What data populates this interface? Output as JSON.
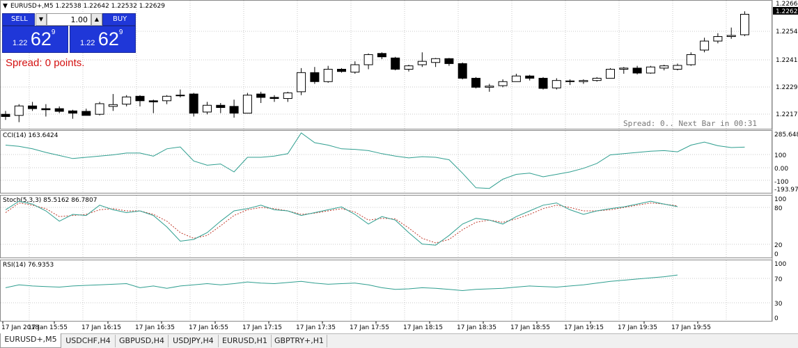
{
  "window": {
    "symbol_header": "EURUSD+,M5  1.22538 1.22642 1.22532 1.22629"
  },
  "one_click": {
    "sell_label": "SELL",
    "buy_label": "BUY",
    "volume": "1.00",
    "sell_small": "1.22",
    "sell_big": "62",
    "sell_sup": "9",
    "buy_small": "1.22",
    "buy_big": "62",
    "buy_sup": "9",
    "spread_text": "Spread: 0 points."
  },
  "price_axis": {
    "labels": [
      "1.22660",
      "1.22540",
      "1.22415",
      "1.22295",
      "1.22175"
    ],
    "current": "1.22629"
  },
  "status_text": "Spread: 0.. Next Bar in 00:31",
  "indicators": {
    "cci": {
      "title": "CCI(14) 163.6424",
      "labels": [
        "285.6483",
        "100",
        "0.00",
        "-100",
        "-193.973"
      ]
    },
    "stoch": {
      "title": "Stoch(5,3,3) 85.5162 86.7807",
      "labels": [
        "100",
        "80",
        "20",
        "0"
      ]
    },
    "rsi": {
      "title": "RSI(14) 76.9353",
      "labels": [
        "100",
        "70",
        "30",
        "0"
      ]
    }
  },
  "time_axis": [
    "17 Jan 2018",
    "17 Jan 15:55",
    "17 Jan 16:15",
    "17 Jan 16:35",
    "17 Jan 16:55",
    "17 Jan 17:15",
    "17 Jan 17:35",
    "17 Jan 17:55",
    "17 Jan 18:15",
    "17 Jan 18:35",
    "17 Jan 18:55",
    "17 Jan 19:15",
    "17 Jan 19:35",
    "17 Jan 19:55"
  ],
  "tabs": [
    "EURUSD+,M5",
    "USDCHF,H4",
    "GBPUSD,H4",
    "USDJPY,H4",
    "EURUSD,H1",
    "GBPTRY+,H1"
  ],
  "colors": {
    "bull": "#ffffff",
    "bear": "#000000",
    "line": "#2e9e8f",
    "signal": "#c0392b",
    "panel": "#1f37d8",
    "spread": "#d41010"
  },
  "chart_data": [
    {
      "type": "candlestick",
      "symbol": "EURUSD+",
      "timeframe": "M5",
      "price_range": [
        1.2213,
        1.2268
      ],
      "candles": [
        {
          "o": 1.22185,
          "h": 1.222,
          "l": 1.2216,
          "c": 1.22175
        },
        {
          "o": 1.2218,
          "h": 1.2223,
          "l": 1.2215,
          "c": 1.22222
        },
        {
          "o": 1.22222,
          "h": 1.2224,
          "l": 1.222,
          "c": 1.2221
        },
        {
          "o": 1.2221,
          "h": 1.2223,
          "l": 1.22175,
          "c": 1.22205
        },
        {
          "o": 1.2221,
          "h": 1.2222,
          "l": 1.2219,
          "c": 1.22198
        },
        {
          "o": 1.222,
          "h": 1.22205,
          "l": 1.22165,
          "c": 1.2219
        },
        {
          "o": 1.22198,
          "h": 1.2221,
          "l": 1.2218,
          "c": 1.2218
        },
        {
          "o": 1.22185,
          "h": 1.2224,
          "l": 1.2218,
          "c": 1.22232
        },
        {
          "o": 1.2222,
          "h": 1.22275,
          "l": 1.222,
          "c": 1.22228
        },
        {
          "o": 1.2223,
          "h": 1.2227,
          "l": 1.2222,
          "c": 1.22262
        },
        {
          "o": 1.22265,
          "h": 1.2227,
          "l": 1.2222,
          "c": 1.22245
        },
        {
          "o": 1.22245,
          "h": 1.2225,
          "l": 1.2219,
          "c": 1.2224
        },
        {
          "o": 1.22245,
          "h": 1.2227,
          "l": 1.2223,
          "c": 1.22265
        },
        {
          "o": 1.2227,
          "h": 1.22295,
          "l": 1.2226,
          "c": 1.22268
        },
        {
          "o": 1.22275,
          "h": 1.2228,
          "l": 1.22175,
          "c": 1.2219
        },
        {
          "o": 1.22195,
          "h": 1.2224,
          "l": 1.22185,
          "c": 1.22225
        },
        {
          "o": 1.22225,
          "h": 1.22235,
          "l": 1.2219,
          "c": 1.22215
        },
        {
          "o": 1.2222,
          "h": 1.2225,
          "l": 1.2217,
          "c": 1.2219
        },
        {
          "o": 1.2219,
          "h": 1.2228,
          "l": 1.2219,
          "c": 1.2227
        },
        {
          "o": 1.22275,
          "h": 1.22285,
          "l": 1.22235,
          "c": 1.2226
        },
        {
          "o": 1.2226,
          "h": 1.2227,
          "l": 1.2224,
          "c": 1.22255
        },
        {
          "o": 1.22255,
          "h": 1.22285,
          "l": 1.2224,
          "c": 1.2228
        },
        {
          "o": 1.22285,
          "h": 1.2239,
          "l": 1.2227,
          "c": 1.2237
        },
        {
          "o": 1.2237,
          "h": 1.22395,
          "l": 1.2232,
          "c": 1.2233
        },
        {
          "o": 1.2233,
          "h": 1.224,
          "l": 1.22325,
          "c": 1.22385
        },
        {
          "o": 1.22385,
          "h": 1.2239,
          "l": 1.2237,
          "c": 1.22375
        },
        {
          "o": 1.22372,
          "h": 1.2242,
          "l": 1.22365,
          "c": 1.22405
        },
        {
          "o": 1.22405,
          "h": 1.22455,
          "l": 1.22385,
          "c": 1.2245
        },
        {
          "o": 1.22455,
          "h": 1.2246,
          "l": 1.2243,
          "c": 1.2244
        },
        {
          "o": 1.22435,
          "h": 1.2244,
          "l": 1.2238,
          "c": 1.22385
        },
        {
          "o": 1.22385,
          "h": 1.22405,
          "l": 1.22375,
          "c": 1.224
        },
        {
          "o": 1.22405,
          "h": 1.2246,
          "l": 1.22395,
          "c": 1.2242
        },
        {
          "o": 1.22415,
          "h": 1.22435,
          "l": 1.22395,
          "c": 1.22432
        },
        {
          "o": 1.22432,
          "h": 1.22435,
          "l": 1.224,
          "c": 1.2241
        },
        {
          "o": 1.2241,
          "h": 1.22415,
          "l": 1.2234,
          "c": 1.22345
        },
        {
          "o": 1.22345,
          "h": 1.2235,
          "l": 1.223,
          "c": 1.22305
        },
        {
          "o": 1.22305,
          "h": 1.2232,
          "l": 1.22285,
          "c": 1.2231
        },
        {
          "o": 1.22312,
          "h": 1.2234,
          "l": 1.22305,
          "c": 1.2233
        },
        {
          "o": 1.2233,
          "h": 1.22365,
          "l": 1.2233,
          "c": 1.22355
        },
        {
          "o": 1.22355,
          "h": 1.2236,
          "l": 1.22335,
          "c": 1.22345
        },
        {
          "o": 1.22345,
          "h": 1.2235,
          "l": 1.22295,
          "c": 1.223
        },
        {
          "o": 1.22302,
          "h": 1.22345,
          "l": 1.22295,
          "c": 1.22335
        },
        {
          "o": 1.22333,
          "h": 1.2234,
          "l": 1.22315,
          "c": 1.2233
        },
        {
          "o": 1.2233,
          "h": 1.2234,
          "l": 1.2232,
          "c": 1.22335
        },
        {
          "o": 1.22335,
          "h": 1.2235,
          "l": 1.2233,
          "c": 1.22345
        },
        {
          "o": 1.22345,
          "h": 1.2239,
          "l": 1.22345,
          "c": 1.22385
        },
        {
          "o": 1.22385,
          "h": 1.22395,
          "l": 1.22365,
          "c": 1.2239
        },
        {
          "o": 1.2239,
          "h": 1.224,
          "l": 1.22362,
          "c": 1.22368
        },
        {
          "o": 1.22368,
          "h": 1.224,
          "l": 1.22365,
          "c": 1.22395
        },
        {
          "o": 1.2239,
          "h": 1.22405,
          "l": 1.2238,
          "c": 1.224
        },
        {
          "o": 1.22385,
          "h": 1.2241,
          "l": 1.2238,
          "c": 1.22402
        },
        {
          "o": 1.22405,
          "h": 1.2246,
          "l": 1.224,
          "c": 1.2245
        },
        {
          "o": 1.2247,
          "h": 1.22525,
          "l": 1.2246,
          "c": 1.2251
        },
        {
          "o": 1.2251,
          "h": 1.22545,
          "l": 1.225,
          "c": 1.2253
        },
        {
          "o": 1.2253,
          "h": 1.2257,
          "l": 1.2252,
          "c": 1.22535
        },
        {
          "o": 1.22538,
          "h": 1.22642,
          "l": 1.22532,
          "c": 1.22629
        }
      ]
    },
    {
      "type": "line",
      "name": "CCI(14)",
      "ylim": [
        -193.973,
        285.6483
      ],
      "values": [
        180,
        170,
        150,
        120,
        95,
        70,
        80,
        90,
        100,
        115,
        115,
        90,
        150,
        165,
        50,
        15,
        25,
        -40,
        80,
        80,
        90,
        110,
        280,
        200,
        180,
        150,
        145,
        135,
        110,
        90,
        75,
        85,
        80,
        60,
        -50,
        -170,
        -175,
        -100,
        -60,
        -50,
        -80,
        -60,
        -40,
        -10,
        30,
        100,
        110,
        120,
        130,
        135,
        125,
        180,
        205,
        175,
        160,
        163.6424
      ]
    },
    {
      "type": "line",
      "name": "Stoch(5,3,3)",
      "ylim": [
        0,
        100
      ],
      "series": [
        {
          "name": "main",
          "values": [
            80,
            95,
            90,
            78,
            60,
            72,
            70,
            88,
            80,
            75,
            78,
            70,
            50,
            25,
            28,
            40,
            60,
            78,
            82,
            88,
            80,
            78,
            70,
            75,
            80,
            85,
            72,
            55,
            68,
            62,
            40,
            20,
            18,
            35,
            55,
            65,
            62,
            55,
            68,
            78,
            88,
            92,
            80,
            72,
            78,
            82,
            85,
            90,
            95,
            90,
            85.5162
          ]
        },
        {
          "name": "signal",
          "values": [
            75,
            92,
            88,
            82,
            68,
            70,
            72,
            80,
            82,
            78,
            78,
            72,
            60,
            40,
            30,
            35,
            52,
            70,
            80,
            84,
            82,
            78,
            72,
            74,
            78,
            82,
            76,
            62,
            65,
            64,
            48,
            30,
            22,
            28,
            45,
            58,
            62,
            58,
            64,
            72,
            82,
            88,
            84,
            78,
            78,
            80,
            84,
            88,
            92,
            90,
            86.7807
          ]
        }
      ]
    },
    {
      "type": "line",
      "name": "RSI(14)",
      "ylim": [
        0,
        100
      ],
      "values": [
        55,
        60,
        58,
        57,
        56,
        58,
        59,
        60,
        61,
        62,
        55,
        58,
        54,
        58,
        60,
        62,
        60,
        62,
        65,
        63,
        62,
        64,
        66,
        63,
        61,
        62,
        63,
        60,
        55,
        52,
        53,
        55,
        54,
        52,
        50,
        52,
        53,
        54,
        56,
        58,
        57,
        56,
        58,
        60,
        63,
        66,
        68,
        70,
        72,
        74,
        76.9353
      ]
    }
  ]
}
